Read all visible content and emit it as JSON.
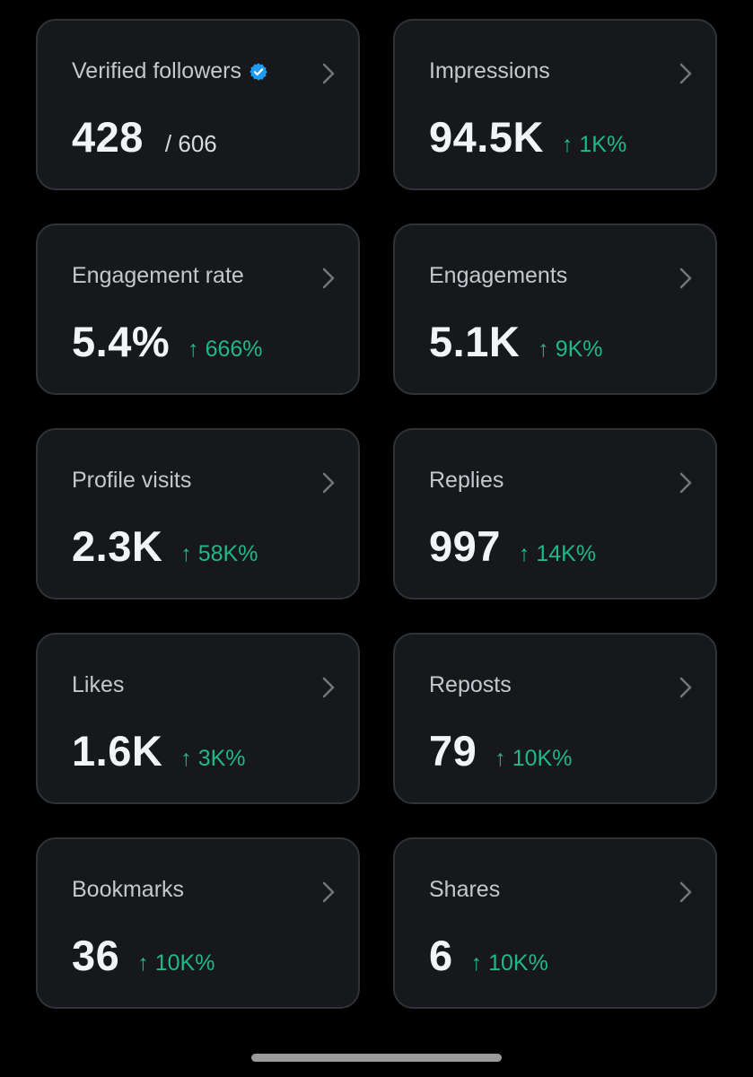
{
  "accent_green": "#1fb886",
  "verified_color": "#1d9bf0",
  "cards": [
    {
      "title": "Verified followers",
      "value": "428",
      "total": "/ 606",
      "delta": "",
      "icon": "verified-badge-icon"
    },
    {
      "title": "Impressions",
      "value": "94.5K",
      "total": "",
      "delta": "↑ 1K%"
    },
    {
      "title": "Engagement rate",
      "value": "5.4%",
      "total": "",
      "delta": "↑ 666%"
    },
    {
      "title": "Engagements",
      "value": "5.1K",
      "total": "",
      "delta": "↑ 9K%"
    },
    {
      "title": "Profile visits",
      "value": "2.3K",
      "total": "",
      "delta": "↑ 58K%"
    },
    {
      "title": "Replies",
      "value": "997",
      "total": "",
      "delta": "↑ 14K%"
    },
    {
      "title": "Likes",
      "value": "1.6K",
      "total": "",
      "delta": "↑ 3K%"
    },
    {
      "title": "Reposts",
      "value": "79",
      "total": "",
      "delta": "↑ 10K%"
    },
    {
      "title": "Bookmarks",
      "value": "36",
      "total": "",
      "delta": "↑ 10K%"
    },
    {
      "title": "Shares",
      "value": "6",
      "total": "",
      "delta": "↑ 10K%"
    }
  ]
}
